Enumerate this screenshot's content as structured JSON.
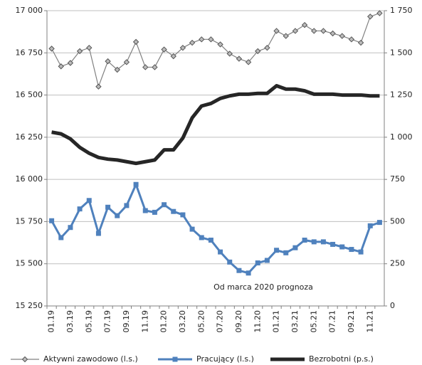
{
  "chart_data": {
    "type": "line",
    "categories": [
      "01.19",
      null,
      "03.19",
      null,
      "05.19",
      null,
      "07.19",
      null,
      "09.19",
      null,
      "11.19",
      null,
      "01.20",
      null,
      "03.20",
      null,
      "05.20",
      null,
      "07.20",
      null,
      "09.20",
      null,
      "11.20",
      null,
      "01.21",
      null,
      "03.21",
      null,
      "05.21",
      null,
      "07.21",
      null,
      "09.21",
      null,
      "11.21",
      null
    ],
    "series": [
      {
        "name": "Aktywni zawodowo (l.s.)",
        "color": "#808080",
        "marker": "diamond",
        "axis": "y",
        "values": [
          16775,
          16670,
          16690,
          16760,
          16780,
          16550,
          16700,
          16650,
          16695,
          16815,
          16665,
          16665,
          16770,
          16730,
          16780,
          16810,
          16830,
          16830,
          16800,
          16745,
          16715,
          16695,
          16760,
          16780,
          16880,
          16850,
          16880,
          16915,
          16880,
          16880,
          16865,
          16850,
          16830,
          16810,
          16965,
          16985
        ]
      },
      {
        "name": "Pracujący (l.s.)",
        "color": "#4f81bd",
        "marker": "square",
        "axis": "y",
        "values": [
          15755,
          15655,
          15715,
          15825,
          15875,
          15680,
          15835,
          15785,
          15845,
          15970,
          15815,
          15805,
          15850,
          15810,
          15790,
          15705,
          15655,
          15640,
          15570,
          15510,
          15460,
          15445,
          15505,
          15520,
          15580,
          15565,
          15595,
          15640,
          15630,
          15630,
          15615,
          15600,
          15585,
          15570,
          15725,
          15745
        ]
      },
      {
        "name": "Bezrobotni (p.s.)",
        "color": "#262626",
        "marker": "none",
        "axis": "y2",
        "values": [
          1030,
          1020,
          990,
          940,
          905,
          880,
          870,
          865,
          855,
          845,
          855,
          865,
          925,
          925,
          995,
          1115,
          1185,
          1200,
          1230,
          1245,
          1255,
          1255,
          1260,
          1260,
          1305,
          1285,
          1285,
          1275,
          1255,
          1255,
          1255,
          1250,
          1250,
          1250,
          1245,
          1245
        ]
      }
    ],
    "ylim": [
      15250,
      17000
    ],
    "yticks": [
      {
        "value": 15250,
        "label": "15 250"
      },
      {
        "value": 15500,
        "label": "15 500"
      },
      {
        "value": 15750,
        "label": "15 750"
      },
      {
        "value": 16000,
        "label": "16 000"
      },
      {
        "value": 16250,
        "label": "16 250"
      },
      {
        "value": 16500,
        "label": "16 500"
      },
      {
        "value": 16750,
        "label": "16 750"
      },
      {
        "value": 17000,
        "label": "17 000"
      }
    ],
    "y2lim": [
      0,
      1750
    ],
    "y2ticks": [
      0,
      250,
      500,
      750,
      {
        "value": 1000,
        "label": "1 000"
      },
      {
        "value": 1250,
        "label": "1 250"
      },
      {
        "value": 1500,
        "label": "1 500"
      },
      {
        "value": 1750,
        "label": "1 750"
      }
    ],
    "grid": true,
    "legend": "bottom",
    "annotation": "Od marca 2020 prognoza"
  }
}
